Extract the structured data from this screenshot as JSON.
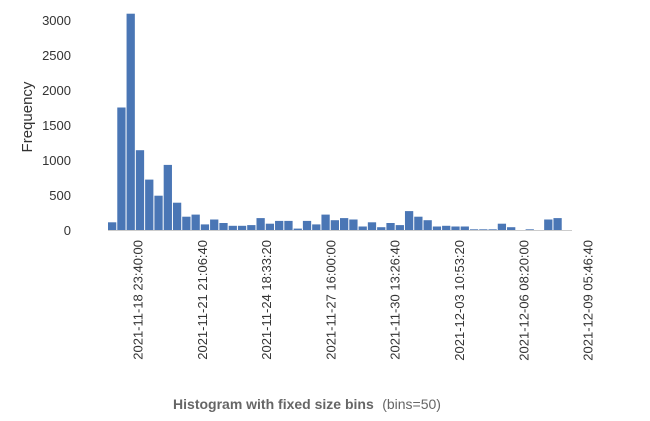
{
  "chart_data": {
    "type": "bar",
    "title_main": "Histogram with fixed size bins",
    "title_suffix": "(bins=50)",
    "xlabel": "",
    "ylabel": "Frequency",
    "ylim": [
      0,
      3100
    ],
    "y_ticks": [
      0,
      500,
      1000,
      1500,
      2000,
      2500,
      3000
    ],
    "x_tick_labels": [
      "2021-11-18 23:40:00",
      "2021-11-21 21:06:40",
      "2021-11-24 18:33:20",
      "2021-11-27 16:00:00",
      "2021-11-30 13:26:40",
      "2021-12-03 10:53:20",
      "2021-12-06 08:20:00",
      "2021-12-09 05:46:40"
    ],
    "bar_color": "#4a76b5",
    "values": [
      110,
      1750,
      3090,
      1140,
      720,
      490,
      930,
      390,
      190,
      220,
      80,
      150,
      100,
      60,
      60,
      70,
      170,
      90,
      130,
      130,
      20,
      130,
      80,
      220,
      140,
      170,
      150,
      50,
      110,
      40,
      100,
      70,
      270,
      190,
      140,
      50,
      60,
      50,
      50,
      10,
      10,
      10,
      90,
      40,
      0,
      10,
      0,
      150,
      170,
      0
    ]
  }
}
